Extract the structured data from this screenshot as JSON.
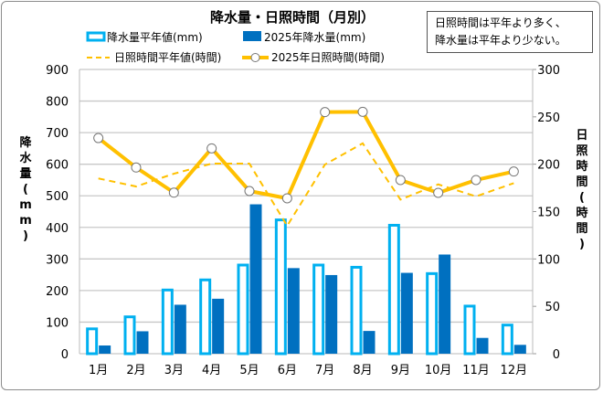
{
  "chart_data": {
    "type": "bar+line",
    "title": "降水量・日照時間（月別）",
    "categories": [
      "1月",
      "2月",
      "3月",
      "4月",
      "5月",
      "6月",
      "7月",
      "8月",
      "9月",
      "10月",
      "11月",
      "12月"
    ],
    "ylabel_left": "降水量(mm)",
    "ylabel_right": "日照時間(時間)",
    "ylim_left": [
      0,
      900
    ],
    "yticks_left": [
      0,
      100,
      200,
      300,
      400,
      500,
      600,
      700,
      800,
      900
    ],
    "ylim_right": [
      0,
      300
    ],
    "yticks_right": [
      0,
      50,
      100,
      150,
      200,
      250,
      300
    ],
    "grid": true,
    "legend_position": "top",
    "series": [
      {
        "name": "降水量平年値(mm)",
        "type": "bar",
        "axis": "left",
        "style": "outline",
        "color": "#00b0f0",
        "values": [
          83,
          121,
          206,
          238,
          285,
          428,
          285,
          278,
          411,
          258,
          155,
          95
        ]
      },
      {
        "name": "2025年降水量(mm)",
        "type": "bar",
        "axis": "left",
        "style": "filled",
        "color": "#0070c0",
        "values": [
          26,
          71,
          155,
          174,
          473,
          271,
          249,
          72,
          256,
          314,
          50,
          28
        ]
      },
      {
        "name": "日照時間平年値(時間)",
        "type": "line",
        "axis": "right",
        "style": "dashed",
        "color": "#ffc000",
        "values": [
          185,
          176.5,
          190,
          200.6,
          200.6,
          135,
          199.7,
          222,
          162.7,
          178.7,
          166,
          180
        ]
      },
      {
        "name": "2025年日照時間(時間)",
        "type": "line",
        "axis": "right",
        "style": "solid-markers",
        "color": "#ffc000",
        "values": [
          227.6,
          196.5,
          170,
          216.7,
          171.7,
          164,
          255,
          255.3,
          183.3,
          169.8,
          183.3,
          192.3
        ]
      }
    ],
    "annotation": [
      "日照時間は平年より多く、",
      "降水量は平年より少ない。"
    ]
  }
}
